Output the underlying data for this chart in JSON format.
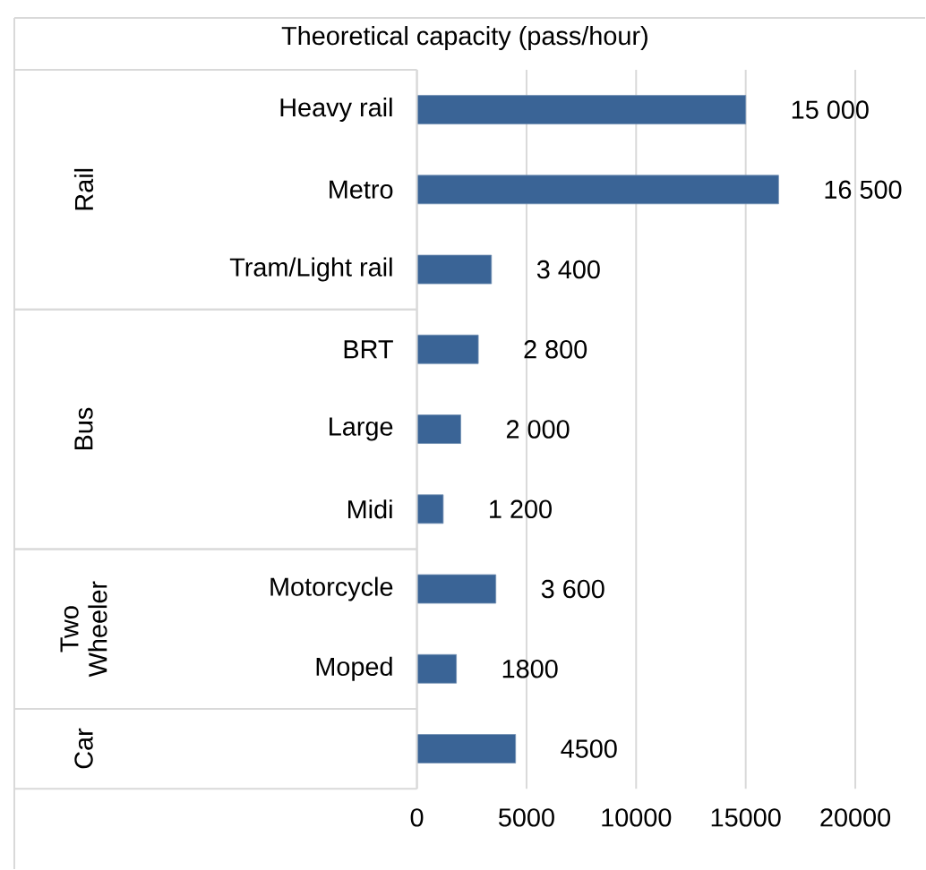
{
  "chart_data": {
    "type": "bar",
    "orientation": "horizontal",
    "title": "Theoretical capacity  (pass/hour)",
    "categories": [
      "Heavy rail",
      "Metro",
      "Tram/Light rail",
      "BRT",
      "Large",
      "Midi",
      "Motorcycle",
      "Moped",
      null
    ],
    "values": [
      15000,
      16500,
      3400,
      2800,
      2000,
      1200,
      3600,
      1800,
      4500
    ],
    "value_labels": [
      "15 000",
      "16 500",
      "3 400",
      "2 800",
      "2 000",
      "1 200",
      "3 600",
      "1800",
      "4500"
    ],
    "color": "#3a6496",
    "xlim": [
      0,
      20000
    ],
    "xticks": [
      0,
      5000,
      10000,
      15000,
      20000
    ],
    "grid": "x",
    "annotations": [
      "Rail",
      "Bus",
      "Two Wheeler",
      "Car"
    ]
  }
}
